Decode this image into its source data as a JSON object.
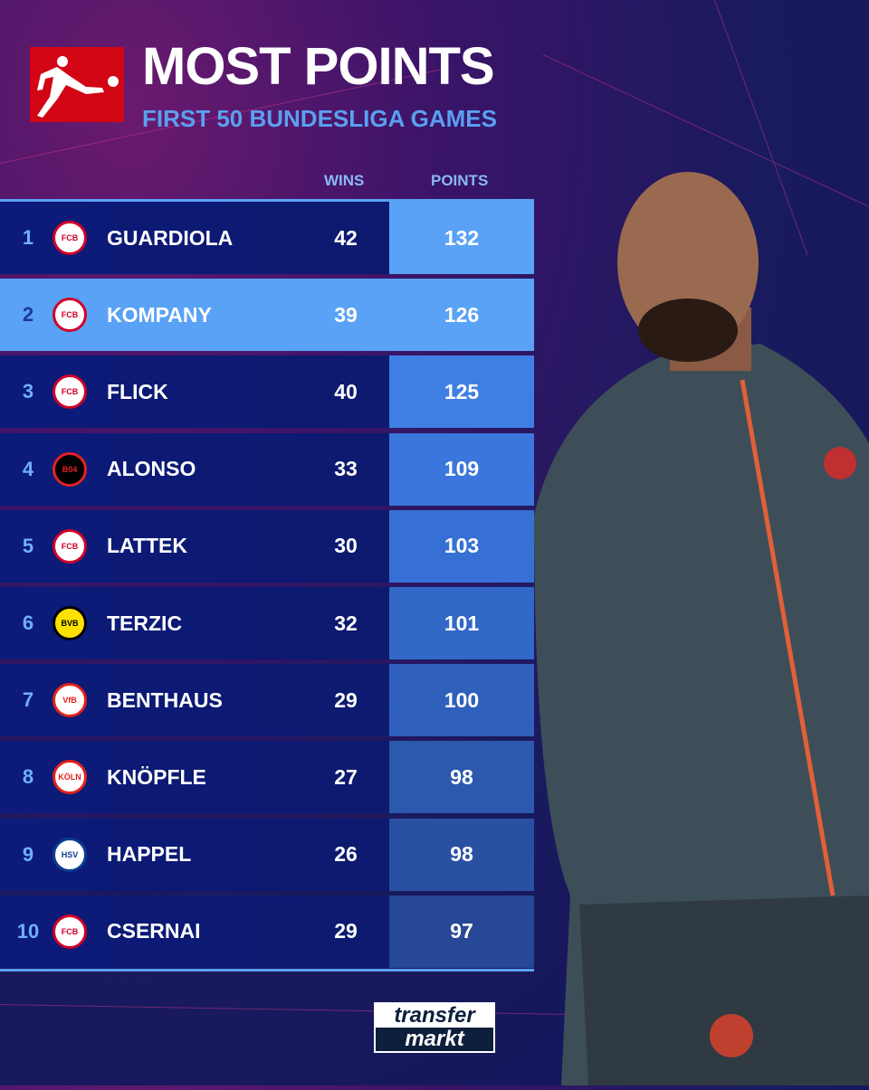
{
  "header": {
    "title": "MOST POINTS",
    "subtitle": "FIRST 50 BUNDESLIGA GAMES",
    "logo": "bundesliga-logo"
  },
  "columns": {
    "wins": "WINS",
    "points": "POINTS"
  },
  "rows": [
    {
      "rank": "1",
      "club": "Bayern Munich",
      "name": "GUARDIOLA",
      "wins": "42",
      "points": "132",
      "highlight": false
    },
    {
      "rank": "2",
      "club": "Bayern Munich",
      "name": "KOMPANY",
      "wins": "39",
      "points": "126",
      "highlight": true
    },
    {
      "rank": "3",
      "club": "Bayern Munich",
      "name": "FLICK",
      "wins": "40",
      "points": "125",
      "highlight": false
    },
    {
      "rank": "4",
      "club": "Bayer Leverkusen",
      "name": "ALONSO",
      "wins": "33",
      "points": "109",
      "highlight": false
    },
    {
      "rank": "5",
      "club": "Bayern Munich",
      "name": "LATTEK",
      "wins": "30",
      "points": "103",
      "highlight": false
    },
    {
      "rank": "6",
      "club": "Borussia Dortmund",
      "name": "TERZIC",
      "wins": "32",
      "points": "101",
      "highlight": false
    },
    {
      "rank": "7",
      "club": "VfB Stuttgart",
      "name": "BENTHAUS",
      "wins": "29",
      "points": "100",
      "highlight": false
    },
    {
      "rank": "8",
      "club": "1. FC Köln",
      "name": "KNÖPFLE",
      "wins": "27",
      "points": "98",
      "highlight": false
    },
    {
      "rank": "9",
      "club": "Hamburger SV",
      "name": "HAPPEL",
      "wins": "26",
      "points": "98",
      "highlight": false
    },
    {
      "rank": "10",
      "club": "Bayern Munich",
      "name": "CSERNAI",
      "wins": "29",
      "points": "97",
      "highlight": false
    }
  ],
  "footer": {
    "brand_line1": "transfer",
    "brand_line2": "markt"
  },
  "colors": {
    "accent": "#5aa2f5",
    "bundesliga_red": "#d20515"
  }
}
